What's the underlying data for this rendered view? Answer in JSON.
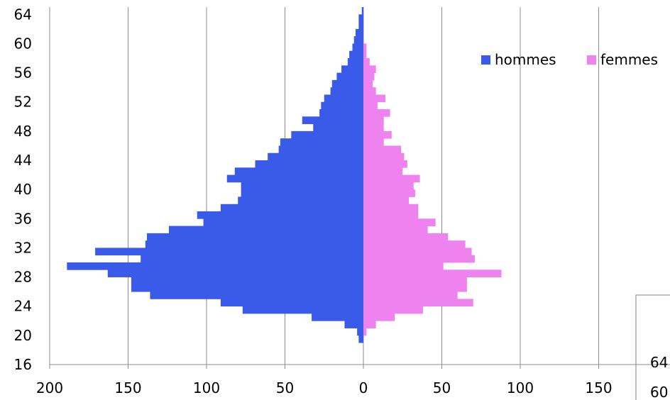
{
  "chart_data": {
    "type": "bar",
    "orientation": "horizontal",
    "layout": "population-pyramid",
    "legend_position": "top-right",
    "grid": true,
    "x_ticks": [
      "200",
      "150",
      "100",
      "50",
      "0",
      "50",
      "100",
      "150"
    ],
    "y_ticks": [
      "16",
      "20",
      "24",
      "28",
      "32",
      "36",
      "40",
      "44",
      "48",
      "52",
      "56",
      "60",
      "64"
    ],
    "xlim": [
      -200,
      200
    ],
    "ylim": [
      16,
      65
    ],
    "categories": [
      19,
      20,
      21,
      22,
      23,
      24,
      25,
      26,
      27,
      28,
      29,
      30,
      31,
      32,
      33,
      34,
      35,
      36,
      37,
      38,
      39,
      40,
      41,
      42,
      43,
      44,
      45,
      46,
      47,
      48,
      49,
      50,
      51,
      52,
      53,
      54,
      55,
      56,
      57,
      58,
      59,
      60,
      61,
      62,
      63,
      64
    ],
    "series": [
      {
        "name": "hommes",
        "color": "#3a5be9",
        "side": "left",
        "values": [
          3,
          4,
          12,
          33,
          77,
          91,
          136,
          148,
          148,
          163,
          189,
          142,
          171,
          139,
          138,
          124,
          102,
          106,
          91,
          80,
          78,
          78,
          87,
          82,
          69,
          61,
          54,
          53,
          46,
          32,
          39,
          28,
          27,
          25,
          21,
          20,
          17,
          14,
          10,
          9,
          7,
          6,
          5,
          3,
          3,
          1
        ]
      },
      {
        "name": "femmes",
        "color": "#ee82ee",
        "side": "right",
        "values": [
          0,
          2,
          8,
          20,
          38,
          70,
          60,
          66,
          66,
          88,
          51,
          71,
          69,
          65,
          54,
          41,
          46,
          35,
          35,
          29,
          33,
          32,
          36,
          25,
          28,
          26,
          24,
          13,
          18,
          13,
          13,
          17,
          9,
          14,
          8,
          6,
          7,
          8,
          4,
          2,
          2,
          0,
          0,
          0,
          0,
          0
        ]
      }
    ],
    "cutoff_inset": {
      "labels": [
        "64",
        "60"
      ]
    }
  }
}
